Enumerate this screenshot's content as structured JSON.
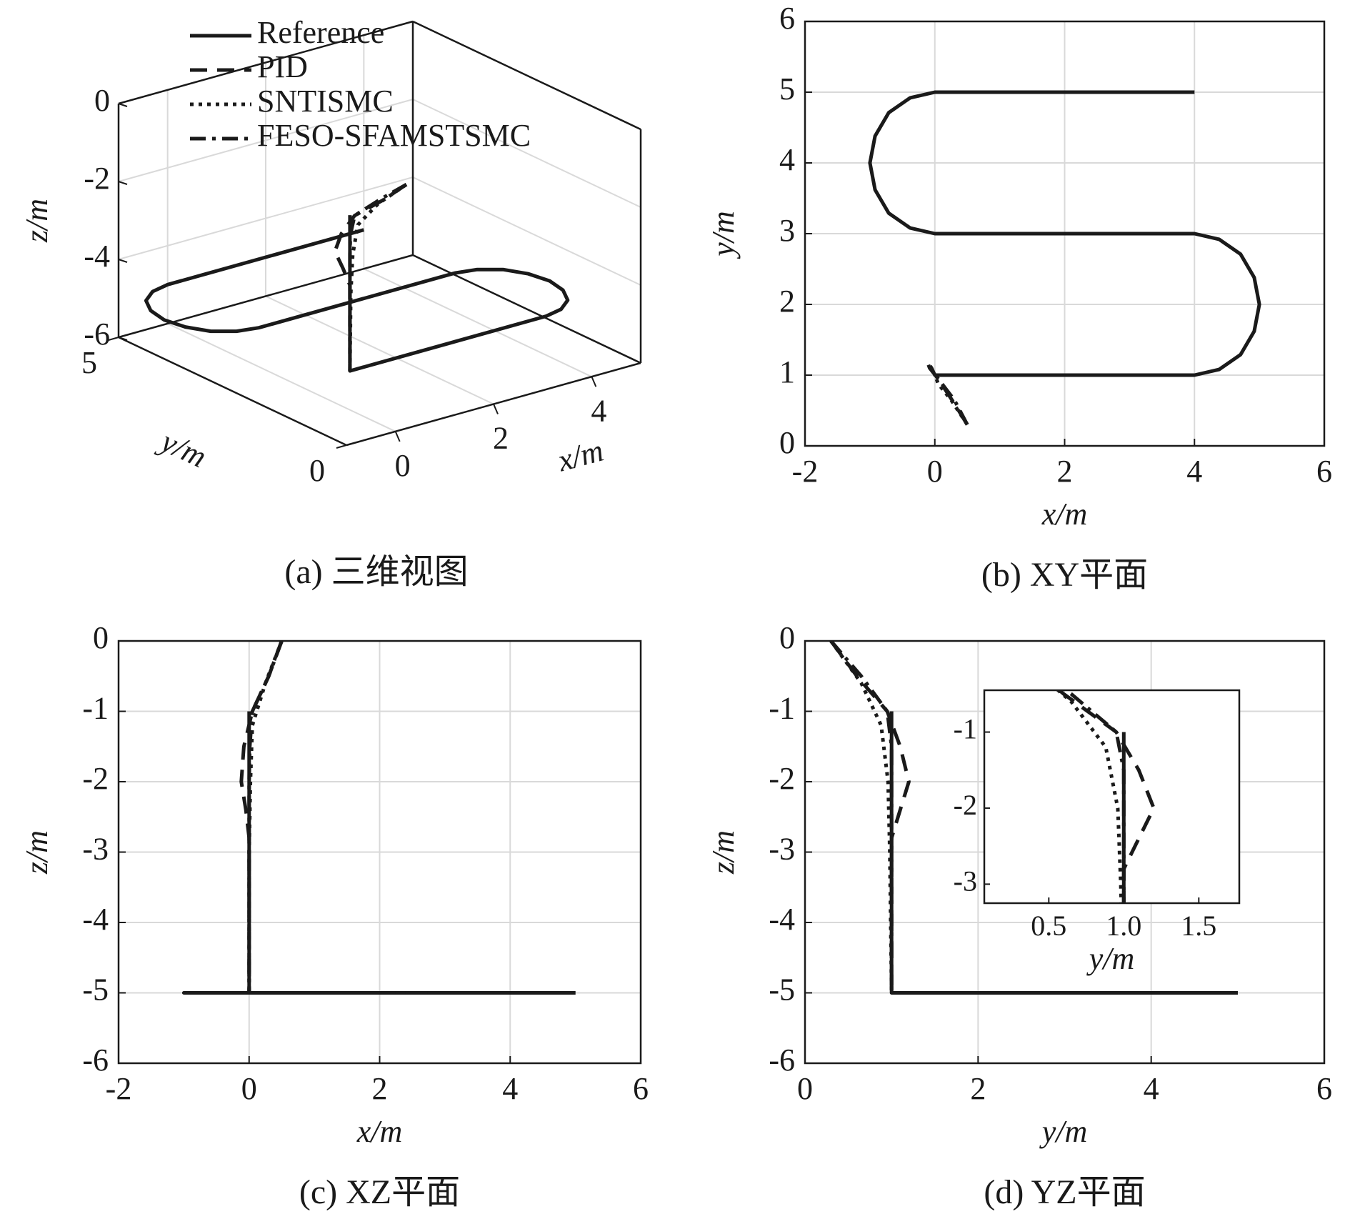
{
  "chart_data": [
    {
      "type": "line3d",
      "title": "(a) 三维视图",
      "xlabel": "x/m",
      "ylabel": "y/m",
      "zlabel": "z/m",
      "xlim": [
        -1,
        5
      ],
      "ylim": [
        0,
        5
      ],
      "zlim": [
        -6,
        0
      ],
      "xticks": [
        0,
        2,
        4
      ],
      "yticks": [
        0,
        5
      ],
      "zticks": [
        -6,
        -4,
        -2,
        0
      ],
      "grid": true,
      "legend": "upper left",
      "series": [
        {
          "name": "Reference",
          "color": "#1a1a1a",
          "dash": "solid",
          "x": [
            0,
            0,
            4,
            4.38,
            4.71,
            4.92,
            5,
            4.92,
            4.71,
            4.38,
            4,
            0,
            -0.38,
            -0.71,
            -0.92,
            -1,
            -0.92,
            -0.71,
            -0.38,
            0,
            4
          ],
          "y": [
            1,
            1,
            1,
            1.08,
            1.29,
            1.62,
            2,
            2.38,
            2.71,
            2.92,
            3,
            3,
            3.08,
            3.29,
            3.62,
            4,
            4.38,
            4.71,
            4.92,
            5,
            5
          ],
          "z": [
            -1,
            -5,
            -5,
            -5,
            -5,
            -5,
            -5,
            -5,
            -5,
            -5,
            -5,
            -5,
            -5,
            -5,
            -5,
            -5,
            -5,
            -5,
            -5,
            -5,
            -5
          ]
        },
        {
          "name": "PID",
          "color": "#1a1a1a",
          "dash": "dashed",
          "x": [
            0.5,
            0.3,
            0.05,
            -0.08,
            -0.12,
            -0.05,
            0,
            0
          ],
          "y": [
            0.3,
            0.6,
            0.95,
            1.1,
            1.2,
            1.1,
            1,
            1
          ],
          "z": [
            0,
            -0.5,
            -1,
            -1.5,
            -2,
            -2.4,
            -2.8,
            -5
          ]
        },
        {
          "name": "SNTISMC",
          "color": "#1a1a1a",
          "dash": "dotted",
          "x": [
            0.5,
            0.25,
            0.05,
            0.02,
            0,
            0
          ],
          "y": [
            0.3,
            0.65,
            0.88,
            0.96,
            0.98,
            1
          ],
          "z": [
            0,
            -0.6,
            -1.2,
            -2,
            -3,
            -5
          ]
        },
        {
          "name": "FESO-SFAMSTSMC",
          "color": "#1a1a1a",
          "dash": "dashdot",
          "x": [
            0.5,
            0.3,
            0.05,
            0.01,
            0,
            0
          ],
          "y": [
            0.3,
            0.65,
            0.95,
            1,
            1,
            1
          ],
          "z": [
            0,
            -0.5,
            -1,
            -1.5,
            -2,
            -5
          ]
        }
      ]
    },
    {
      "type": "line",
      "title": "(b) XY平面",
      "xlabel": "x/m",
      "ylabel": "y/m",
      "xlim": [
        -2,
        6
      ],
      "ylim": [
        0,
        6
      ],
      "xticks": [
        -2,
        0,
        2,
        4,
        6
      ],
      "yticks": [
        0,
        1,
        2,
        3,
        4,
        5,
        6
      ],
      "grid": true,
      "series": [
        {
          "color": "#1a1a1a",
          "dash": "solid",
          "x": [
            0,
            4,
            4.38,
            4.71,
            4.92,
            5,
            4.92,
            4.71,
            4.38,
            4,
            0,
            -0.38,
            -0.71,
            -0.92,
            -1,
            -0.92,
            -0.71,
            -0.38,
            0,
            4
          ],
          "values": [
            1,
            1,
            1.08,
            1.29,
            1.62,
            2,
            2.38,
            2.71,
            2.92,
            3,
            3,
            3.08,
            3.29,
            3.62,
            4,
            4.38,
            4.71,
            4.92,
            5,
            5
          ]
        },
        {
          "color": "#1a1a1a",
          "dash": "dashed",
          "x": [
            0.5,
            0.3,
            0.05,
            -0.08,
            -0.12,
            -0.05,
            0,
            4
          ],
          "values": [
            0.3,
            0.6,
            0.95,
            1.1,
            1.2,
            1.1,
            1,
            1
          ]
        },
        {
          "color": "#1a1a1a",
          "dash": "dotted",
          "x": [
            0.5,
            0.25,
            0.05,
            0.02,
            0,
            0,
            4
          ],
          "values": [
            0.3,
            0.65,
            0.88,
            0.96,
            0.98,
            1,
            1
          ]
        },
        {
          "color": "#1a1a1a",
          "dash": "dashdot",
          "x": [
            0.5,
            0.3,
            0.05,
            0.01,
            0,
            4
          ],
          "values": [
            0.3,
            0.65,
            0.95,
            1,
            1,
            1
          ]
        }
      ]
    },
    {
      "type": "line",
      "title": "(c) XZ平面",
      "xlabel": "x/m",
      "ylabel": "z/m",
      "xlim": [
        -2,
        6
      ],
      "ylim": [
        -6,
        0
      ],
      "xticks": [
        -2,
        0,
        2,
        4,
        6
      ],
      "yticks": [
        -6,
        -5,
        -4,
        -3,
        -2,
        -1,
        0
      ],
      "grid": true,
      "series": [
        {
          "color": "#1a1a1a",
          "dash": "solid",
          "x": [
            0,
            0,
            -1,
            5
          ],
          "values": [
            -1,
            -5,
            -5,
            -5
          ]
        },
        {
          "color": "#1a1a1a",
          "dash": "dashed",
          "x": [
            0.5,
            0.3,
            0.05,
            -0.08,
            -0.12,
            -0.05,
            0,
            0,
            5
          ],
          "values": [
            0,
            -0.5,
            -1,
            -1.5,
            -2,
            -2.4,
            -2.8,
            -5,
            -5
          ]
        },
        {
          "color": "#1a1a1a",
          "dash": "dotted",
          "x": [
            0.5,
            0.25,
            0.05,
            0.02,
            0,
            0,
            5
          ],
          "values": [
            0,
            -0.6,
            -1.2,
            -2,
            -3,
            -5,
            -5
          ]
        },
        {
          "color": "#1a1a1a",
          "dash": "dashdot",
          "x": [
            0.5,
            0.3,
            0.05,
            0.01,
            0,
            0,
            5
          ],
          "values": [
            0,
            -0.5,
            -1,
            -1.5,
            -2,
            -5,
            -5
          ]
        }
      ]
    },
    {
      "type": "line",
      "title": "(d) YZ平面",
      "xlabel": "y/m",
      "ylabel": "z/m",
      "xlim": [
        0,
        6
      ],
      "ylim": [
        -6,
        0
      ],
      "xticks": [
        0,
        2,
        4,
        6
      ],
      "yticks": [
        -6,
        -5,
        -4,
        -3,
        -2,
        -1,
        0
      ],
      "grid": true,
      "series": [
        {
          "color": "#1a1a1a",
          "dash": "solid",
          "x": [
            1,
            1,
            5
          ],
          "values": [
            -1,
            -5,
            -5
          ]
        },
        {
          "color": "#1a1a1a",
          "dash": "dashed",
          "x": [
            0.3,
            0.6,
            0.95,
            1.1,
            1.2,
            1.1,
            1,
            1,
            5
          ],
          "values": [
            0,
            -0.5,
            -1,
            -1.5,
            -2,
            -2.4,
            -2.8,
            -5,
            -5
          ]
        },
        {
          "color": "#1a1a1a",
          "dash": "dotted",
          "x": [
            0.3,
            0.65,
            0.88,
            0.96,
            0.98,
            1,
            5
          ],
          "values": [
            0,
            -0.6,
            -1.2,
            -2,
            -3,
            -5,
            -5
          ]
        },
        {
          "color": "#1a1a1a",
          "dash": "dashdot",
          "x": [
            0.3,
            0.65,
            0.95,
            1,
            1,
            1,
            5
          ],
          "values": [
            0,
            -0.5,
            -1,
            -1.5,
            -2,
            -5,
            -5
          ]
        }
      ],
      "inset": {
        "xlabel": "y/m",
        "xlim": [
          0.07,
          1.77
        ],
        "ylim": [
          -3.25,
          -0.45
        ],
        "xticks": [
          0.5,
          {
            "value": 1,
            "label": "1.0"
          },
          1.5
        ],
        "yticks": [
          -3,
          -2,
          -1
        ]
      }
    }
  ]
}
